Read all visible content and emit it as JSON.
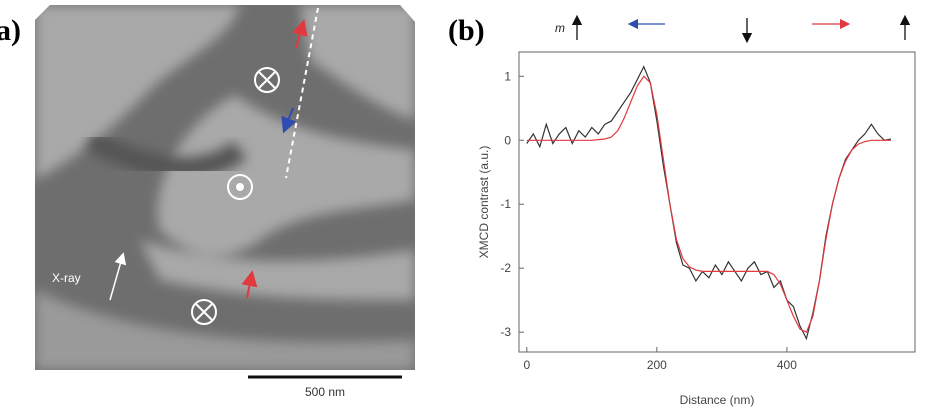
{
  "panel_a": {
    "label": "a)",
    "xray_label": "X-ray",
    "scale_bar_label": "500 nm"
  },
  "panel_b": {
    "label": "(b)",
    "moment_label": "m"
  },
  "chart_data": {
    "type": "line",
    "xlabel": "Distance (nm)",
    "ylabel": "XMCD contrast (a.u.)",
    "x": [
      0,
      10,
      20,
      30,
      40,
      50,
      60,
      70,
      80,
      90,
      100,
      110,
      120,
      130,
      140,
      150,
      160,
      170,
      180,
      190,
      200,
      210,
      220,
      230,
      240,
      250,
      260,
      270,
      280,
      290,
      300,
      310,
      320,
      330,
      340,
      350,
      360,
      370,
      380,
      390,
      400,
      410,
      420,
      430,
      440,
      450,
      460,
      470,
      480,
      490,
      500,
      510,
      520,
      530,
      540,
      550,
      560
    ],
    "series": [
      {
        "color": "#333333",
        "values": [
          -0.05,
          0.1,
          -0.1,
          0.25,
          -0.05,
          0.1,
          0.2,
          -0.05,
          0.15,
          0.05,
          0.2,
          0.1,
          0.25,
          0.3,
          0.45,
          0.6,
          0.75,
          0.95,
          1.15,
          0.9,
          0.3,
          -0.4,
          -1.0,
          -1.6,
          -1.95,
          -2.0,
          -2.2,
          -2.05,
          -2.15,
          -1.95,
          -2.1,
          -1.9,
          -2.05,
          -2.2,
          -2.0,
          -1.9,
          -2.1,
          -2.05,
          -2.3,
          -2.2,
          -2.5,
          -2.6,
          -2.9,
          -3.1,
          -2.7,
          -2.2,
          -1.5,
          -1.0,
          -0.6,
          -0.3,
          -0.15,
          0.0,
          0.1,
          0.25,
          0.1,
          0.0,
          0.02
        ]
      },
      {
        "color": "#e0393e",
        "values": [
          0,
          0,
          0,
          0,
          0,
          0,
          0,
          0,
          0,
          0,
          0,
          0.01,
          0.02,
          0.05,
          0.15,
          0.35,
          0.6,
          0.85,
          1.0,
          0.9,
          0.4,
          -0.3,
          -1.0,
          -1.55,
          -1.85,
          -1.98,
          -2.03,
          -2.05,
          -2.05,
          -2.05,
          -2.05,
          -2.05,
          -2.05,
          -2.05,
          -2.05,
          -2.05,
          -2.05,
          -2.05,
          -2.1,
          -2.25,
          -2.5,
          -2.75,
          -2.95,
          -3.0,
          -2.75,
          -2.2,
          -1.55,
          -1.0,
          -0.6,
          -0.33,
          -0.15,
          -0.06,
          -0.02,
          0,
          0,
          0,
          0
        ]
      }
    ],
    "xlim": [
      -12,
      597
    ],
    "ylim": [
      -3.31,
      1.38
    ],
    "xticks": [
      0,
      200,
      400
    ],
    "yticks": [
      1,
      0,
      -1,
      -2,
      -3
    ]
  }
}
